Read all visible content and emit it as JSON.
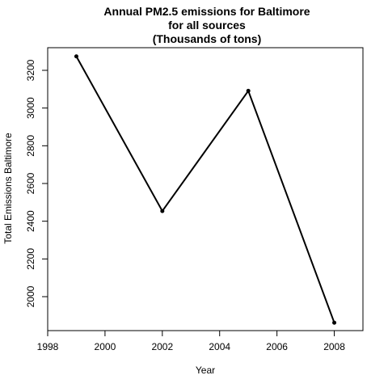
{
  "chart_data": {
    "type": "line",
    "title_lines": [
      "Annual PM2.5 emissions for Baltimore",
      "for all sources",
      "(Thousands of tons)"
    ],
    "xlabel": "Year",
    "ylabel": "Total Emissions Baltimore",
    "x": [
      1999,
      2002,
      2005,
      2008
    ],
    "series": [
      {
        "values": [
          3274,
          2454,
          3091,
          1862
        ]
      }
    ],
    "xlim": [
      1998,
      2009
    ],
    "ylim": [
      1820,
      3320
    ],
    "x_ticks": [
      1998,
      2000,
      2002,
      2004,
      2006,
      2008
    ],
    "y_ticks": [
      2000,
      2200,
      2400,
      2600,
      2800,
      3000,
      3200
    ],
    "grid": false,
    "markers": true,
    "line_color": "#000000"
  }
}
